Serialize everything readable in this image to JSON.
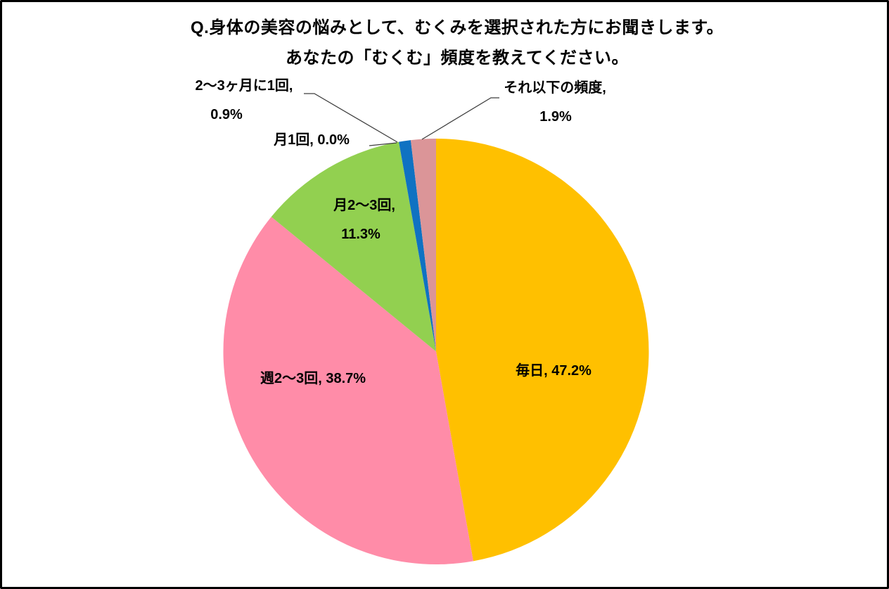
{
  "title": {
    "line1": "Q.身体の美容の悩みとして、むくみを選択された方にお聞きします。",
    "line2": "あなたの「むくむ」頻度を教えてください。"
  },
  "chart_data": {
    "type": "pie",
    "title": "Q.身体の美容の悩みとして、むくみを選択された方にお聞きします。 あなたの「むくむ」頻度を教えてください。",
    "direction": "clockwise",
    "start_angle_deg": 0,
    "legend_position": "none",
    "categories": [
      "毎日",
      "週2〜3回",
      "月2〜3回",
      "月1回",
      "2〜3ヶ月に1回",
      "それ以下の頻度"
    ],
    "values": [
      47.2,
      38.7,
      11.3,
      0.0,
      0.9,
      1.9
    ],
    "colors": [
      "#FFC000",
      "#FF8CA8",
      "#92D050",
      null,
      "#0F72C2",
      "#DB9598"
    ],
    "data_label_format": "category, percent",
    "data_labels": [
      {
        "lines": [
          "毎日, 47.2%"
        ]
      },
      {
        "lines": [
          "週2〜3回, 38.7%"
        ]
      },
      {
        "lines": [
          "月2〜3回,",
          "11.3%"
        ]
      },
      {
        "lines": [
          "月1回, 0.0%"
        ]
      },
      {
        "lines": [
          "2〜3ヶ月に1回,",
          "0.9%"
        ]
      },
      {
        "lines": [
          "それ以下の頻度,",
          "1.9%"
        ]
      }
    ]
  },
  "colors": {
    "leader_line": "#3F3F3F",
    "frame_border": "#000000",
    "background": "#FFFFFF",
    "label_text": "#000000"
  }
}
